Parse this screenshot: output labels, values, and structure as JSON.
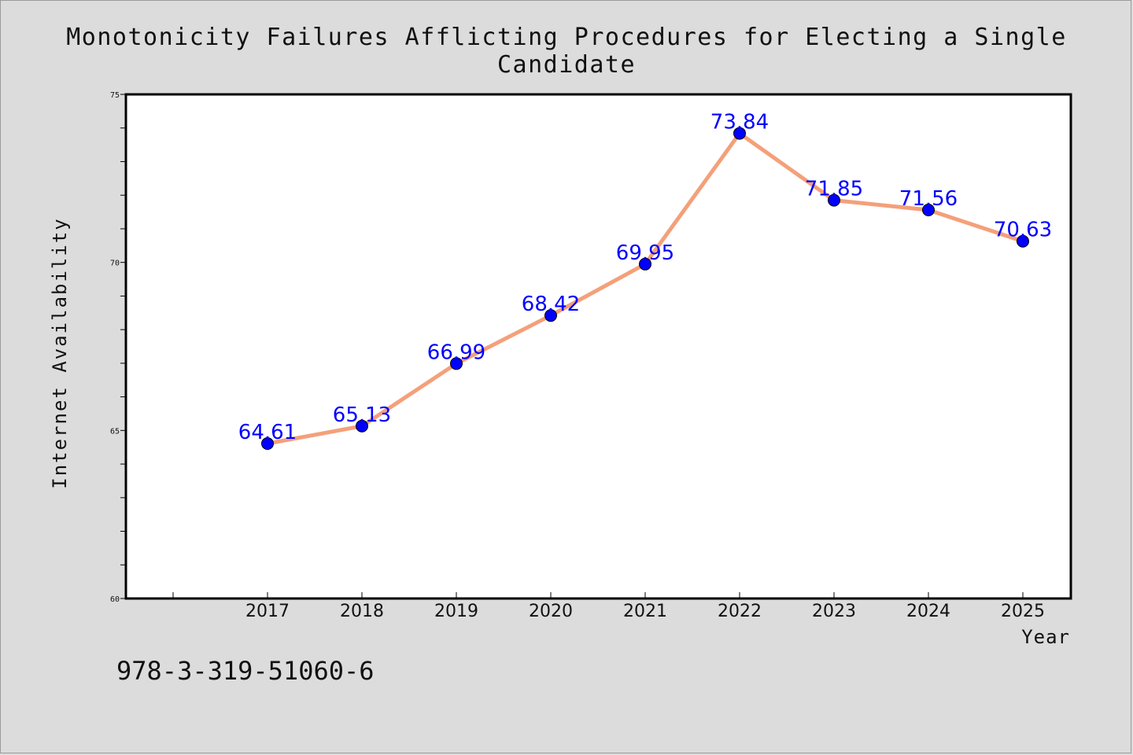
{
  "chart_data": {
    "type": "line",
    "title": "Monotonicity Failures Afflicting Procedures for Electing a Single Candidate",
    "xlabel": "Year",
    "ylabel": "Internet Availability",
    "categories": [
      "2017",
      "2018",
      "2019",
      "2020",
      "2021",
      "2022",
      "2023",
      "2024",
      "2025"
    ],
    "series": [
      {
        "values": [
          64.61,
          65.13,
          66.99,
          68.42,
          69.95,
          73.84,
          71.85,
          71.56,
          70.63
        ],
        "labels": [
          "64.61",
          "65.13",
          "66.99",
          "68.42",
          "69.95",
          "73.84",
          "71.85",
          "71.56",
          "70.63"
        ],
        "line_color": "#f4a07a",
        "marker_color": "#0000ff"
      }
    ],
    "ylim": [
      60,
      75
    ],
    "yticks": [
      "60",
      "65",
      "70",
      "75"
    ],
    "grid": false,
    "legend": "none"
  },
  "footer_text": "978-3-319-51060-6"
}
